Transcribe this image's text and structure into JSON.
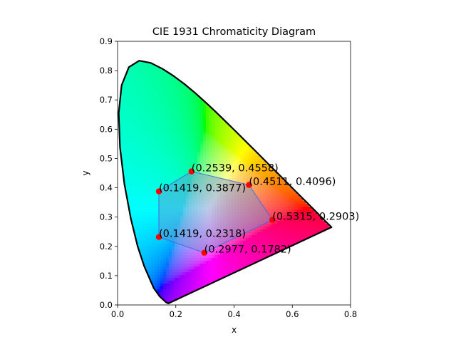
{
  "chart_data": {
    "type": "scatter",
    "title": "CIE 1931 Chromaticity Diagram",
    "xlabel": "x",
    "ylabel": "y",
    "xlim": [
      0.0,
      0.8
    ],
    "ylim": [
      0.0,
      0.9
    ],
    "x_ticks": [
      "0.0",
      "0.2",
      "0.4",
      "0.6",
      "0.8"
    ],
    "y_ticks": [
      "0.0",
      "0.1",
      "0.2",
      "0.3",
      "0.4",
      "0.5",
      "0.6",
      "0.7",
      "0.8",
      "0.9"
    ],
    "grid": false,
    "aspect": "equal",
    "spectral_locus": [
      [
        0.1741,
        0.005
      ],
      [
        0.1666,
        0.0089
      ],
      [
        0.144,
        0.0297
      ],
      [
        0.1241,
        0.0578
      ],
      [
        0.0913,
        0.1327
      ],
      [
        0.0687,
        0.2007
      ],
      [
        0.0454,
        0.295
      ],
      [
        0.0235,
        0.4127
      ],
      [
        0.0082,
        0.5384
      ],
      [
        0.0039,
        0.6548
      ],
      [
        0.0139,
        0.7502
      ],
      [
        0.0389,
        0.812
      ],
      [
        0.0743,
        0.8338
      ],
      [
        0.1142,
        0.8262
      ],
      [
        0.1547,
        0.8059
      ],
      [
        0.1929,
        0.7816
      ],
      [
        0.2296,
        0.7543
      ],
      [
        0.2658,
        0.7243
      ],
      [
        0.3016,
        0.6923
      ],
      [
        0.3373,
        0.6589
      ],
      [
        0.3731,
        0.6245
      ],
      [
        0.4087,
        0.5896
      ],
      [
        0.4441,
        0.5547
      ],
      [
        0.4788,
        0.5202
      ],
      [
        0.5125,
        0.4866
      ],
      [
        0.5448,
        0.4544
      ],
      [
        0.5752,
        0.4242
      ],
      [
        0.6029,
        0.3965
      ],
      [
        0.627,
        0.3725
      ],
      [
        0.6482,
        0.3514
      ],
      [
        0.6658,
        0.334
      ],
      [
        0.6915,
        0.3083
      ],
      [
        0.714,
        0.2859
      ],
      [
        0.7347,
        0.2653
      ]
    ],
    "gamut_polygon": {
      "fill": "#6f8fd0",
      "edge": "#4169e1"
    },
    "points": [
      {
        "x": 0.2539,
        "y": 0.4558,
        "label": "(0.2539, 0.4558)"
      },
      {
        "x": 0.4511,
        "y": 0.4096,
        "label": "(0.4511, 0.4096)"
      },
      {
        "x": 0.5315,
        "y": 0.2903,
        "label": "(0.5315, 0.2903)"
      },
      {
        "x": 0.2977,
        "y": 0.1782,
        "label": "(0.2977, 0.1782)"
      },
      {
        "x": 0.1419,
        "y": 0.2318,
        "label": "(0.1419, 0.2318)"
      },
      {
        "x": 0.1419,
        "y": 0.3877,
        "label": "(0.1419, 0.3877)"
      }
    ],
    "marker_color": "#ff0000"
  }
}
